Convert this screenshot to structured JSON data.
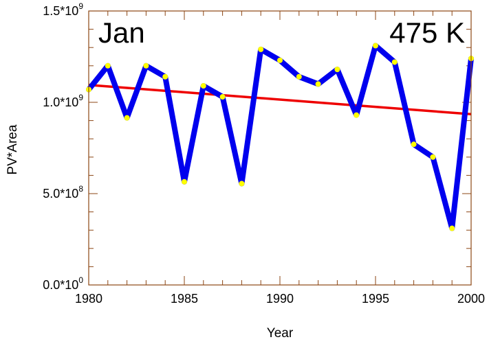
{
  "chart_data": {
    "type": "line",
    "month_label": "Jan",
    "level_label": "475 K",
    "xlabel": "Year",
    "ylabel": "PV*Area",
    "xlim": [
      1980,
      2000
    ],
    "ylim": [
      0,
      1500000000
    ],
    "x_ticks": [
      {
        "value": 1980,
        "label": "1980"
      },
      {
        "value": 1985,
        "label": "1985"
      },
      {
        "value": 1990,
        "label": "1990"
      },
      {
        "value": 1995,
        "label": "1995"
      },
      {
        "value": 2000,
        "label": "2000"
      }
    ],
    "y_ticks": [
      {
        "value": 0,
        "mantissa": "0.0*10",
        "exponent": "0"
      },
      {
        "value": 500000000,
        "mantissa": "5.0*10",
        "exponent": "8"
      },
      {
        "value": 1000000000,
        "mantissa": "1.0*10",
        "exponent": "9"
      },
      {
        "value": 1500000000,
        "mantissa": "1.5*10",
        "exponent": "9"
      }
    ],
    "x_minor_step": 1,
    "y_minor_step": 100000000,
    "colors": {
      "series": "#0000ee",
      "markers": "#ffff00",
      "trend": "#ee0000",
      "axis": "#8b4513"
    },
    "series": [
      {
        "x": [
          1980,
          1981,
          1982,
          1983,
          1984,
          1985,
          1986,
          1987,
          1988,
          1989,
          1990,
          1991,
          1992,
          1993,
          1994,
          1995,
          1996,
          1997,
          1998,
          1999,
          2000
        ],
        "values": [
          1070000000,
          1200000000,
          915000000,
          1200000000,
          1140000000,
          565000000,
          1090000000,
          1030000000,
          555000000,
          1290000000,
          1230000000,
          1140000000,
          1100000000,
          1180000000,
          930000000,
          1310000000,
          1220000000,
          770000000,
          700000000,
          310000000,
          1240000000
        ]
      }
    ],
    "trend_line": {
      "x": [
        1980,
        2000
      ],
      "values": [
        1095000000,
        935000000
      ]
    }
  }
}
